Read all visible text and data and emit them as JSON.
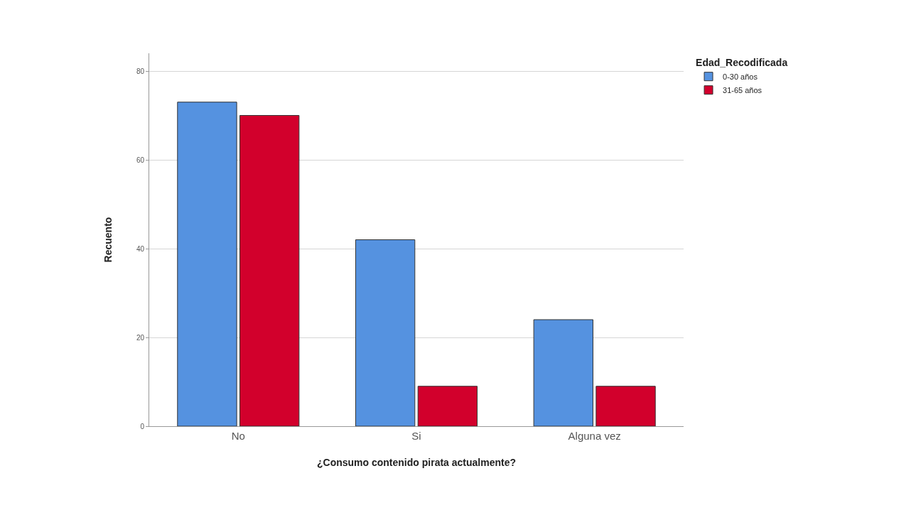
{
  "chart_data": {
    "type": "bar",
    "xlabel": "¿Consumo contenido pirata actualmente?",
    "ylabel": "Recuento",
    "legend_title": "Edad_Recodificada",
    "categories": [
      "No",
      "Si",
      "Alguna vez"
    ],
    "series": [
      {
        "name": "0-30 años",
        "color": "#5592e0",
        "values": [
          73,
          42,
          24
        ]
      },
      {
        "name": "31-65 años",
        "color": "#d2002c",
        "values": [
          70,
          9,
          9
        ]
      }
    ],
    "ylim": [
      0,
      84
    ],
    "yticks": [
      0,
      20,
      40,
      60,
      80
    ],
    "grid": "y",
    "legend": "top right"
  }
}
